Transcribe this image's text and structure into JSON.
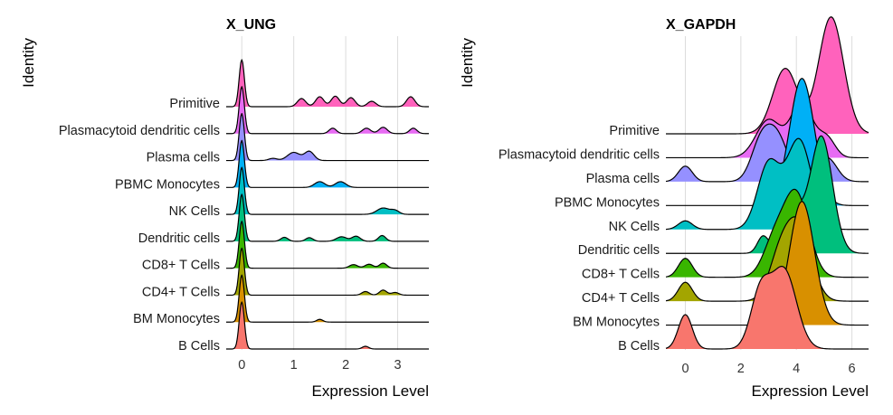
{
  "chart_data": [
    {
      "type": "ridgeline",
      "title": "X_UNG",
      "xlabel": "Expression Level",
      "ylabel": "Identity",
      "xlim": [
        -0.3,
        3.6
      ],
      "xticks": [
        0,
        1,
        2,
        3
      ],
      "grid": true,
      "categories": [
        "B Cells",
        "BM Monocytes",
        "CD4+ T Cells",
        "CD8+ T Cells",
        "Dendritic cells",
        "NK Cells",
        "PBMC Monocytes",
        "Plasma cells",
        "Plasmacytoid dendritic cells",
        "Primitive"
      ],
      "colors": [
        "#F8766D",
        "#D89000",
        "#A3A500",
        "#39B600",
        "#00BF7D",
        "#00BFC4",
        "#00B0F6",
        "#9590FF",
        "#E76BF3",
        "#FF62BC"
      ],
      "series": [
        {
          "name": "B Cells",
          "peaks": [
            {
              "x": 0,
              "height": 2.6,
              "width": 0.05
            },
            {
              "x": 2.38,
              "height": 0.15,
              "width": 0.06
            }
          ]
        },
        {
          "name": "BM Monocytes",
          "peaks": [
            {
              "x": 0,
              "height": 2.6,
              "width": 0.05
            },
            {
              "x": 1.5,
              "height": 0.15,
              "width": 0.06
            }
          ]
        },
        {
          "name": "CD4+ T Cells",
          "peaks": [
            {
              "x": 0,
              "height": 2.6,
              "width": 0.05
            },
            {
              "x": 2.38,
              "height": 0.2,
              "width": 0.07
            },
            {
              "x": 2.72,
              "height": 0.28,
              "width": 0.07
            },
            {
              "x": 2.95,
              "height": 0.15,
              "width": 0.07
            }
          ]
        },
        {
          "name": "CD8+ T Cells",
          "peaks": [
            {
              "x": 0,
              "height": 2.6,
              "width": 0.05
            },
            {
              "x": 2.15,
              "height": 0.2,
              "width": 0.08
            },
            {
              "x": 2.45,
              "height": 0.22,
              "width": 0.08
            },
            {
              "x": 2.72,
              "height": 0.28,
              "width": 0.07
            }
          ]
        },
        {
          "name": "Dendritic cells",
          "peaks": [
            {
              "x": 0,
              "height": 2.6,
              "width": 0.05
            },
            {
              "x": 0.82,
              "height": 0.22,
              "width": 0.07
            },
            {
              "x": 1.3,
              "height": 0.2,
              "width": 0.07
            },
            {
              "x": 1.92,
              "height": 0.25,
              "width": 0.1
            },
            {
              "x": 2.2,
              "height": 0.28,
              "width": 0.08
            },
            {
              "x": 2.7,
              "height": 0.32,
              "width": 0.07
            }
          ]
        },
        {
          "name": "NK Cells",
          "peaks": [
            {
              "x": 0,
              "height": 2.6,
              "width": 0.05
            },
            {
              "x": 2.72,
              "height": 0.35,
              "width": 0.12
            },
            {
              "x": 2.95,
              "height": 0.2,
              "width": 0.08
            }
          ]
        },
        {
          "name": "PBMC Monocytes",
          "peaks": [
            {
              "x": 0,
              "height": 2.6,
              "width": 0.05
            },
            {
              "x": 1.5,
              "height": 0.32,
              "width": 0.1
            },
            {
              "x": 1.9,
              "height": 0.32,
              "width": 0.1
            }
          ]
        },
        {
          "name": "Plasma cells",
          "peaks": [
            {
              "x": 0,
              "height": 2.6,
              "width": 0.05
            },
            {
              "x": 0.6,
              "height": 0.12,
              "width": 0.08
            },
            {
              "x": 1.0,
              "height": 0.45,
              "width": 0.12
            },
            {
              "x": 1.3,
              "height": 0.5,
              "width": 0.09
            }
          ]
        },
        {
          "name": "Plasmacytoid dendritic cells",
          "peaks": [
            {
              "x": 0,
              "height": 2.6,
              "width": 0.05
            },
            {
              "x": 1.75,
              "height": 0.3,
              "width": 0.07
            },
            {
              "x": 2.4,
              "height": 0.3,
              "width": 0.08
            },
            {
              "x": 2.72,
              "height": 0.35,
              "width": 0.08
            },
            {
              "x": 3.3,
              "height": 0.3,
              "width": 0.07
            }
          ]
        },
        {
          "name": "Primitive",
          "peaks": [
            {
              "x": 0,
              "height": 2.6,
              "width": 0.05
            },
            {
              "x": 1.15,
              "height": 0.45,
              "width": 0.08
            },
            {
              "x": 1.5,
              "height": 0.55,
              "width": 0.08
            },
            {
              "x": 1.8,
              "height": 0.58,
              "width": 0.08
            },
            {
              "x": 2.1,
              "height": 0.5,
              "width": 0.08
            },
            {
              "x": 2.5,
              "height": 0.3,
              "width": 0.08
            },
            {
              "x": 3.25,
              "height": 0.55,
              "width": 0.08
            }
          ]
        }
      ]
    },
    {
      "type": "ridgeline",
      "title": "X_GAPDH",
      "xlabel": "Expression Level",
      "ylabel": "Identity",
      "xlim": [
        -0.7,
        6.6
      ],
      "xticks": [
        0,
        2,
        4,
        6
      ],
      "grid": true,
      "categories": [
        "B Cells",
        "BM Monocytes",
        "CD4+ T Cells",
        "CD8+ T Cells",
        "Dendritic cells",
        "NK Cells",
        "PBMC Monocytes",
        "Plasma cells",
        "Plasmacytoid dendritic cells",
        "Primitive"
      ],
      "colors": [
        "#F8766D",
        "#D89000",
        "#A3A500",
        "#39B600",
        "#00BF7D",
        "#00BFC4",
        "#00B0F6",
        "#9590FF",
        "#E76BF3",
        "#FF62BC"
      ],
      "series": [
        {
          "name": "B Cells",
          "peaks": [
            {
              "x": 0,
              "height": 1.0,
              "width": 0.25
            },
            {
              "x": 2.7,
              "height": 1.6,
              "width": 0.35
            },
            {
              "x": 3.55,
              "height": 2.3,
              "width": 0.45
            }
          ]
        },
        {
          "name": "BM Monocytes",
          "peaks": [
            {
              "x": 4.2,
              "height": 3.6,
              "width": 0.45
            }
          ]
        },
        {
          "name": "CD4+ T Cells",
          "peaks": [
            {
              "x": 0,
              "height": 0.55,
              "width": 0.25
            },
            {
              "x": 3.4,
              "height": 1.2,
              "width": 0.4
            },
            {
              "x": 4.1,
              "height": 2.1,
              "width": 0.45
            }
          ]
        },
        {
          "name": "CD8+ T Cells",
          "peaks": [
            {
              "x": 0,
              "height": 0.55,
              "width": 0.25
            },
            {
              "x": 3.2,
              "height": 1.0,
              "width": 0.4
            },
            {
              "x": 4.0,
              "height": 2.4,
              "width": 0.45
            }
          ]
        },
        {
          "name": "Dendritic cells",
          "peaks": [
            {
              "x": 2.8,
              "height": 0.5,
              "width": 0.2
            },
            {
              "x": 3.4,
              "height": 0.3,
              "width": 0.2
            },
            {
              "x": 3.9,
              "height": 1.2,
              "width": 0.35
            },
            {
              "x": 4.9,
              "height": 3.4,
              "width": 0.4
            }
          ]
        },
        {
          "name": "NK Cells",
          "peaks": [
            {
              "x": 0,
              "height": 0.25,
              "width": 0.25
            },
            {
              "x": 3.0,
              "height": 1.9,
              "width": 0.4
            },
            {
              "x": 4.1,
              "height": 2.6,
              "width": 0.45
            }
          ]
        },
        {
          "name": "PBMC Monocytes",
          "peaks": [
            {
              "x": 4.2,
              "height": 3.7,
              "width": 0.45
            }
          ]
        },
        {
          "name": "Plasma cells",
          "peaks": [
            {
              "x": 0,
              "height": 0.45,
              "width": 0.25
            },
            {
              "x": 2.7,
              "height": 1.0,
              "width": 0.35
            },
            {
              "x": 3.3,
              "height": 1.3,
              "width": 0.4
            },
            {
              "x": 5.1,
              "height": 0.7,
              "width": 0.35
            }
          ]
        },
        {
          "name": "Plasmacytoid dendritic cells",
          "peaks": [
            {
              "x": 3.0,
              "height": 1.1,
              "width": 0.45
            },
            {
              "x": 4.2,
              "height": 1.6,
              "width": 0.4
            },
            {
              "x": 5.1,
              "height": 0.55,
              "width": 0.3
            }
          ]
        },
        {
          "name": "Primitive",
          "peaks": [
            {
              "x": 3.6,
              "height": 1.9,
              "width": 0.45
            },
            {
              "x": 5.25,
              "height": 3.4,
              "width": 0.45
            }
          ]
        }
      ]
    }
  ]
}
